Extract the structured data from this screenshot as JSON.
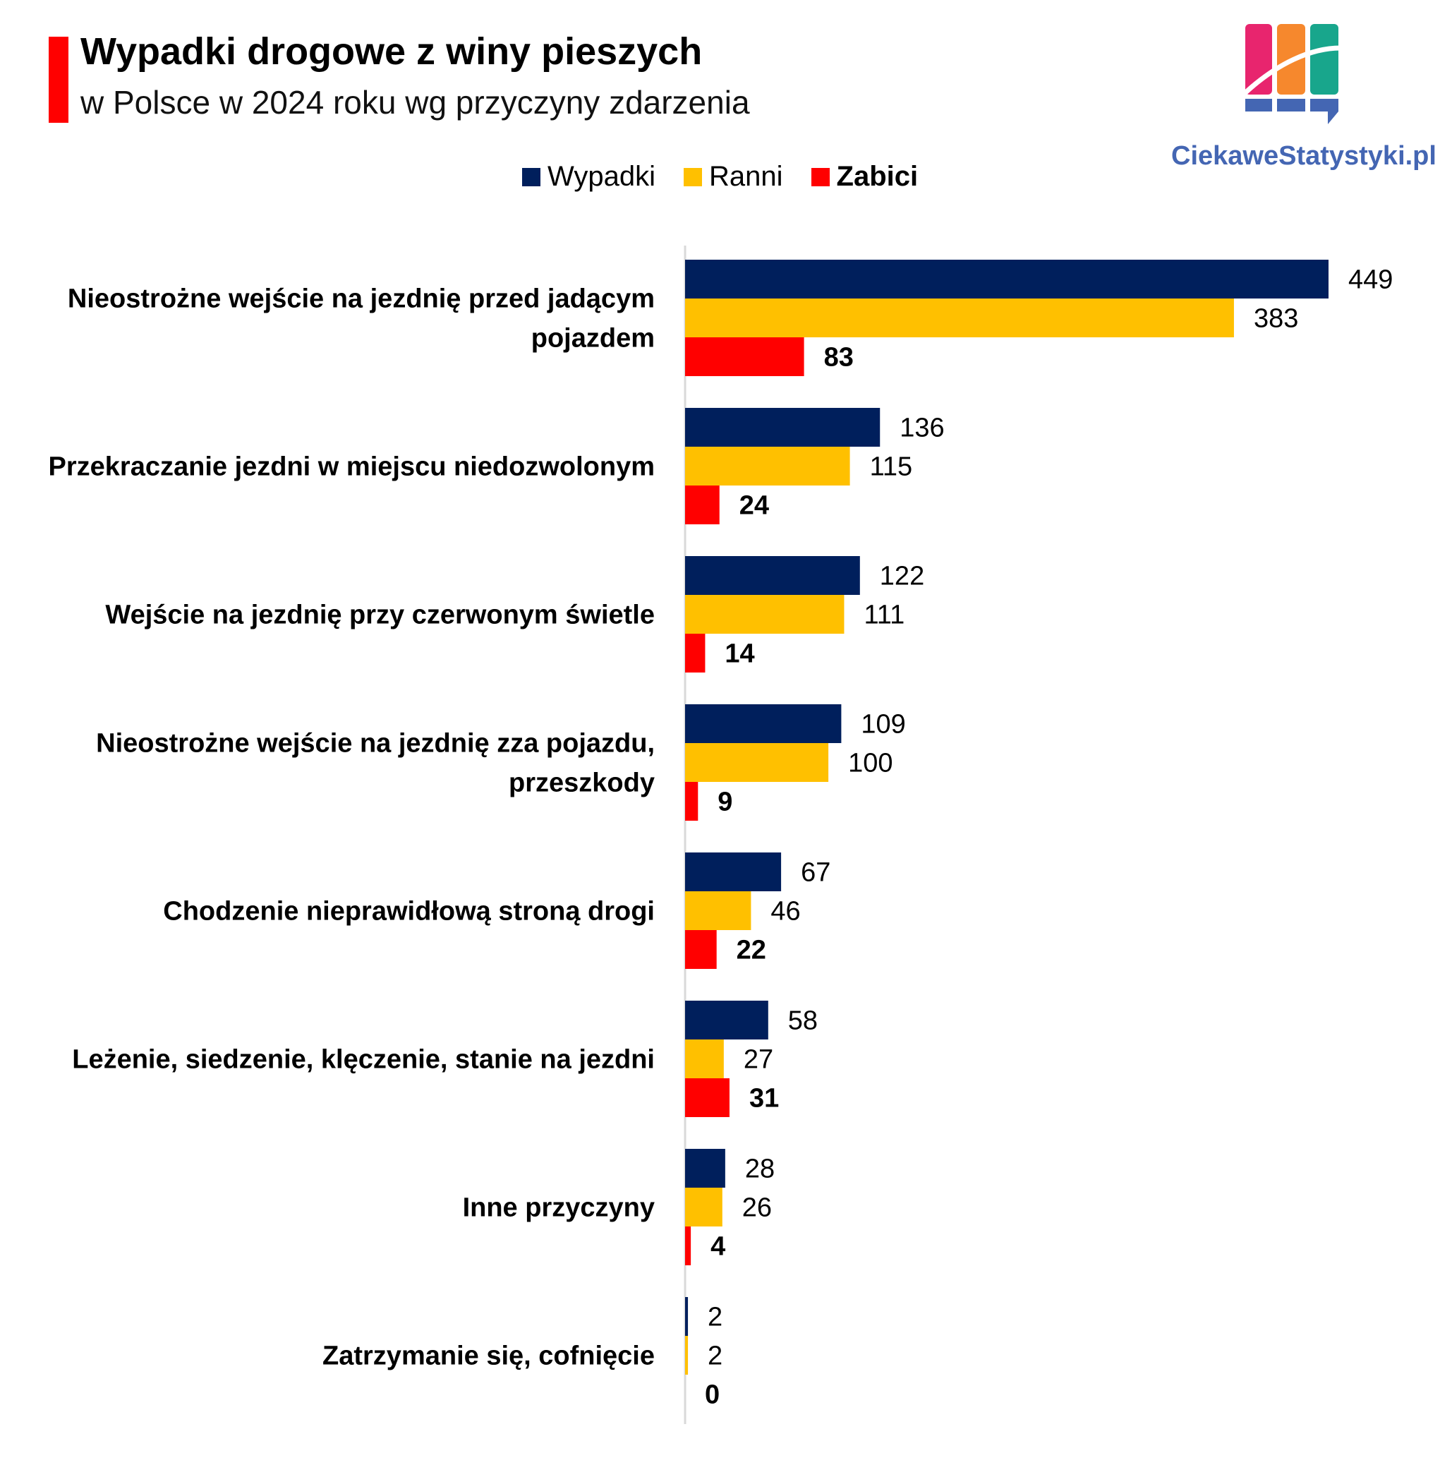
{
  "header": {
    "title": "Wypadki drogowe z winy pieszych",
    "subtitle": "w Polsce w 2024 roku wg przyczyny zdarzenia",
    "accent_color": "#ff0000"
  },
  "brand": {
    "name": "CiekaweStatystyki.pl",
    "colors": [
      "#e8256e",
      "#f6882d",
      "#18a68c",
      "#4466b3"
    ]
  },
  "chart_data": {
    "type": "bar",
    "orientation": "horizontal",
    "title": "Wypadki drogowe z winy pieszych",
    "subtitle": "w Polsce w 2024 roku wg przyczyny zdarzenia",
    "xlabel": "",
    "ylabel": "",
    "xlim": [
      0,
      449
    ],
    "grid": false,
    "legend_position": "top",
    "categories": [
      "Nieostrożne wejście na jezdnię przed jadącym pojazdem",
      "Przekraczanie jezdni w miejscu niedozwolonym",
      "Wejście na jezdnię przy czerwonym świetle",
      "Nieostrożne wejście na jezdnię zza pojazdu, przeszkody",
      "Chodzenie nieprawidłową stroną drogi",
      "Leżenie, siedzenie, klęczenie, stanie na jezdni",
      "Inne przyczyny",
      "Zatrzymanie się, cofnięcie"
    ],
    "category_lines": [
      [
        "Nieostrożne wejście na jezdnię przed jadącym",
        "pojazdem"
      ],
      [
        "Przekraczanie jezdni w miejscu niedozwolonym"
      ],
      [
        "Wejście na jezdnię przy czerwonym świetle"
      ],
      [
        "Nieostrożne wejście na jezdnię zza pojazdu,",
        "przeszkody"
      ],
      [
        "Chodzenie nieprawidłową stroną drogi"
      ],
      [
        "Leżenie, siedzenie, klęczenie, stanie na jezdni"
      ],
      [
        "Inne przyczyny"
      ],
      [
        "Zatrzymanie się, cofnięcie"
      ]
    ],
    "series": [
      {
        "name": "Wypadki",
        "color": "#001f5c",
        "bold_label": false,
        "values": [
          449,
          136,
          122,
          109,
          67,
          58,
          28,
          2
        ]
      },
      {
        "name": "Ranni",
        "color": "#ffc000",
        "bold_label": false,
        "values": [
          383,
          115,
          111,
          100,
          46,
          27,
          26,
          2
        ]
      },
      {
        "name": "Zabici",
        "color": "#ff0000",
        "bold_label": true,
        "values": [
          83,
          24,
          14,
          9,
          22,
          31,
          4,
          0
        ]
      }
    ]
  }
}
